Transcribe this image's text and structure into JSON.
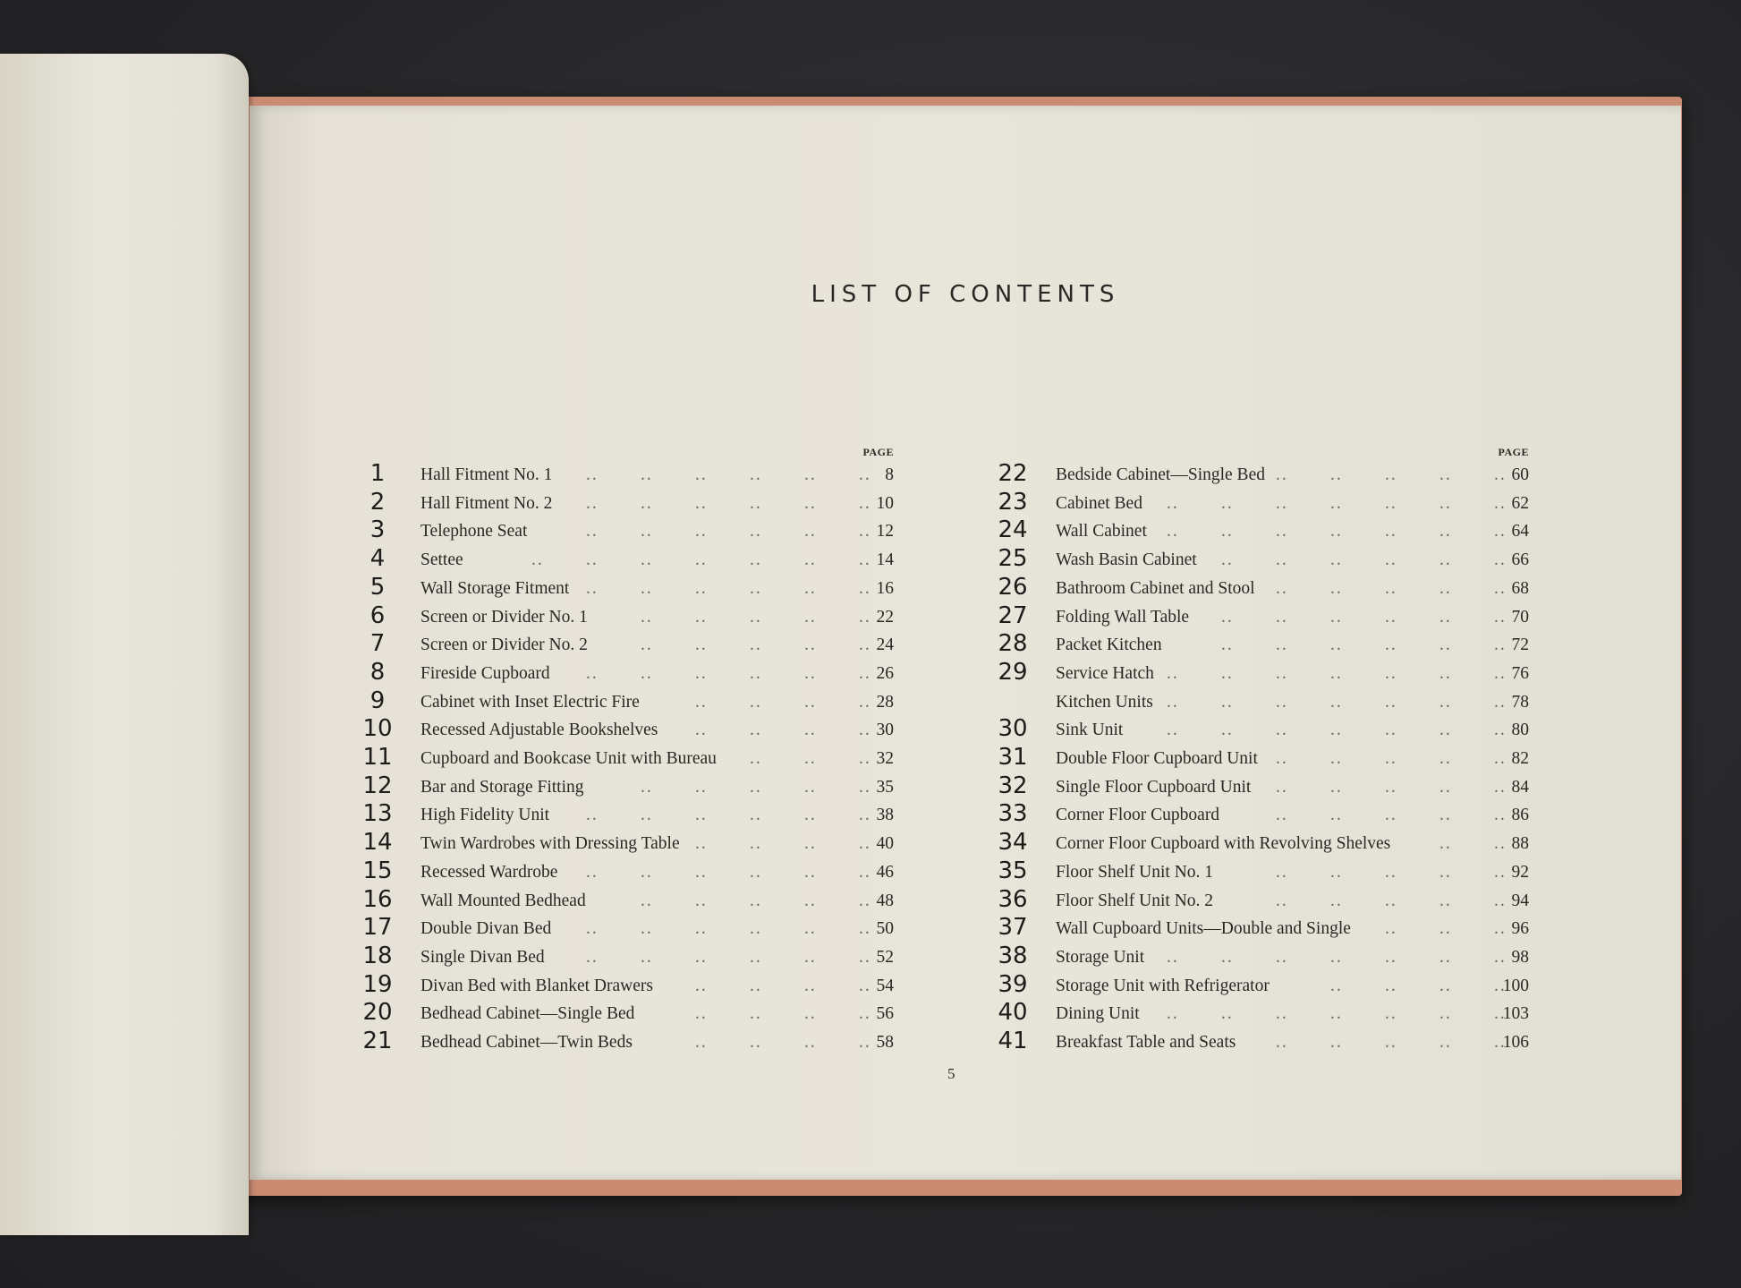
{
  "title": "LIST OF CONTENTS",
  "page_header": "PAGE",
  "folio": "5",
  "colors": {
    "paper": "#e8e5db",
    "cover": "#c98c73",
    "background": "#2b2b2d",
    "ink": "#2a2824"
  },
  "left_column": [
    {
      "num": "1",
      "title": "Hall Fitment No. 1",
      "page": "8"
    },
    {
      "num": "2",
      "title": "Hall Fitment No. 2",
      "page": "10"
    },
    {
      "num": "3",
      "title": "Telephone Seat",
      "page": "12"
    },
    {
      "num": "4",
      "title": "Settee",
      "page": "14"
    },
    {
      "num": "5",
      "title": "Wall Storage Fitment",
      "page": "16"
    },
    {
      "num": "6",
      "title": "Screen or Divider No. 1",
      "page": "22"
    },
    {
      "num": "7",
      "title": "Screen or Divider No. 2",
      "page": "24"
    },
    {
      "num": "8",
      "title": "Fireside Cupboard",
      "page": "26"
    },
    {
      "num": "9",
      "title": "Cabinet with Inset Electric Fire",
      "page": "28"
    },
    {
      "num": "10",
      "title": "Recessed Adjustable Bookshelves",
      "page": "30"
    },
    {
      "num": "11",
      "title": "Cupboard and Bookcase Unit with Bureau",
      "page": "32"
    },
    {
      "num": "12",
      "title": "Bar and Storage Fitting",
      "page": "35"
    },
    {
      "num": "13",
      "title": "High Fidelity Unit",
      "page": "38"
    },
    {
      "num": "14",
      "title": "Twin Wardrobes with Dressing Table",
      "page": "40"
    },
    {
      "num": "15",
      "title": "Recessed Wardrobe",
      "page": "46"
    },
    {
      "num": "16",
      "title": "Wall Mounted Bedhead",
      "page": "48"
    },
    {
      "num": "17",
      "title": "Double Divan Bed",
      "page": "50"
    },
    {
      "num": "18",
      "title": "Single Divan Bed",
      "page": "52"
    },
    {
      "num": "19",
      "title": "Divan Bed with Blanket Drawers",
      "page": "54"
    },
    {
      "num": "20",
      "title": "Bedhead Cabinet—Single Bed",
      "page": "56"
    },
    {
      "num": "21",
      "title": "Bedhead Cabinet—Twin Beds",
      "page": "58"
    }
  ],
  "right_column": [
    {
      "num": "22",
      "title": "Bedside Cabinet—Single Bed",
      "page": "60"
    },
    {
      "num": "23",
      "title": "Cabinet Bed",
      "page": "62"
    },
    {
      "num": "24",
      "title": "Wall Cabinet",
      "page": "64"
    },
    {
      "num": "25",
      "title": "Wash Basin Cabinet",
      "page": "66"
    },
    {
      "num": "26",
      "title": "Bathroom Cabinet and Stool",
      "page": "68"
    },
    {
      "num": "27",
      "title": "Folding Wall Table",
      "page": "70"
    },
    {
      "num": "28",
      "title": "Packet Kitchen",
      "page": "72"
    },
    {
      "num": "29",
      "title": "Service Hatch",
      "page": "76"
    },
    {
      "num": "",
      "title": "Kitchen Units",
      "page": "78"
    },
    {
      "num": "30",
      "title": "Sink Unit",
      "page": "80"
    },
    {
      "num": "31",
      "title": "Double Floor Cupboard Unit",
      "page": "82"
    },
    {
      "num": "32",
      "title": "Single Floor Cupboard Unit",
      "page": "84"
    },
    {
      "num": "33",
      "title": "Corner Floor Cupboard",
      "page": "86"
    },
    {
      "num": "34",
      "title": "Corner Floor Cupboard with Revolving Shelves",
      "page": "88"
    },
    {
      "num": "35",
      "title": "Floor Shelf Unit No. 1",
      "page": "92"
    },
    {
      "num": "36",
      "title": "Floor Shelf Unit No. 2",
      "page": "94"
    },
    {
      "num": "37",
      "title": "Wall Cupboard Units—Double and Single",
      "page": "96"
    },
    {
      "num": "38",
      "title": "Storage Unit",
      "page": "98"
    },
    {
      "num": "39",
      "title": "Storage Unit with Refrigerator",
      "page": "100"
    },
    {
      "num": "40",
      "title": "Dining Unit",
      "page": "103"
    },
    {
      "num": "41",
      "title": "Breakfast Table and Seats",
      "page": "106"
    }
  ]
}
